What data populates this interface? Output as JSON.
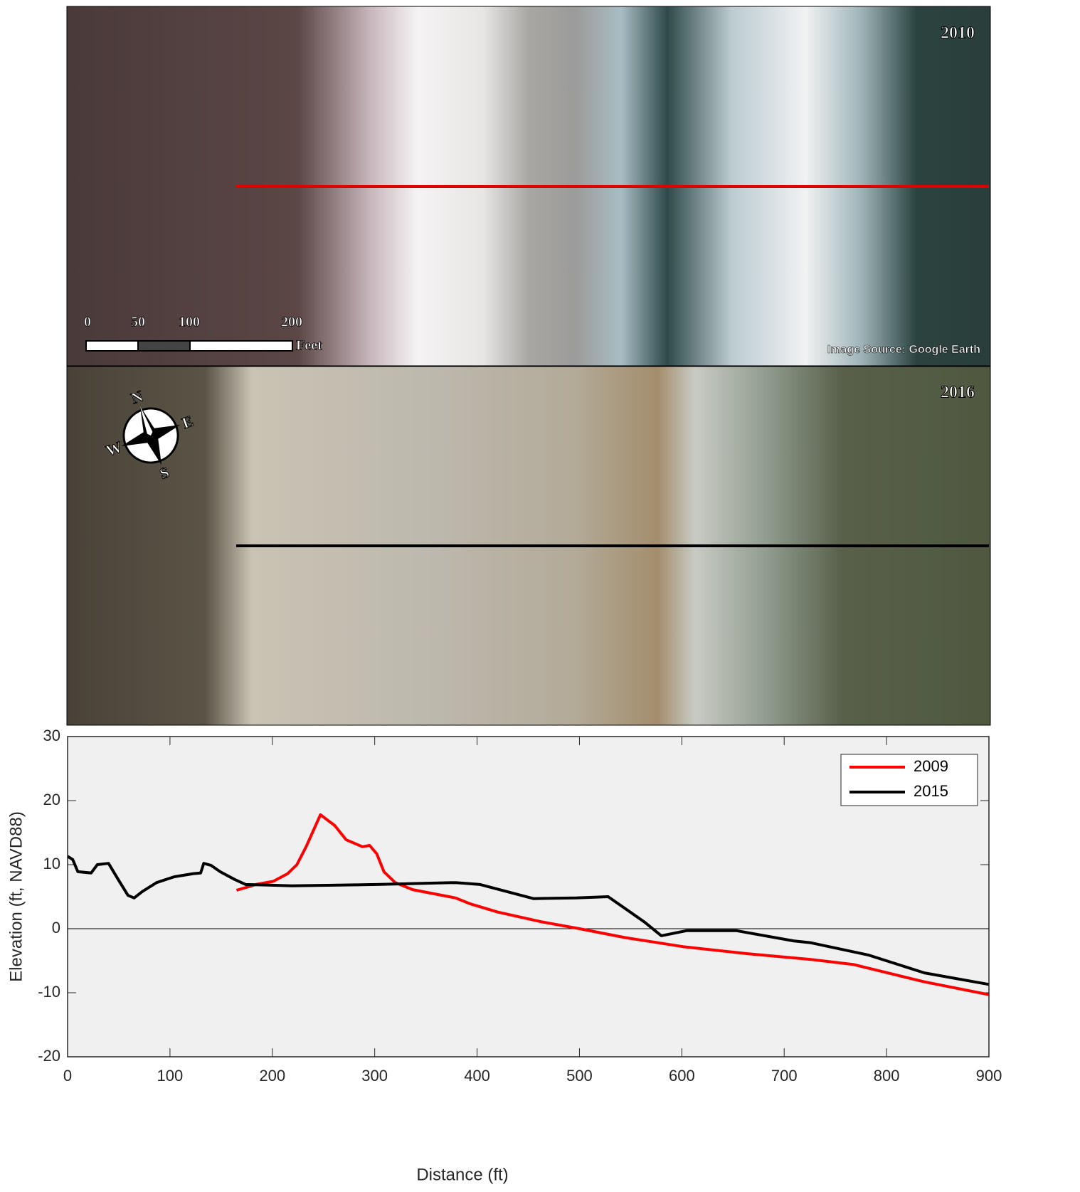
{
  "panels": {
    "top": {
      "year": "2010",
      "scale_labels": [
        "0",
        "50",
        "100",
        "200"
      ],
      "scale_unit": "Feet",
      "source": "Image Source: Google Earth"
    },
    "bottom": {
      "year": "2016",
      "compass": [
        "N",
        "E",
        "S",
        "W"
      ]
    }
  },
  "chart_data": {
    "type": "line",
    "x_label": "Distance (ft)",
    "y_label": "Elevation (ft, NAVD88)",
    "xlim": [
      0,
      900
    ],
    "ylim": [
      -20,
      30
    ],
    "xticks": [
      0,
      100,
      200,
      300,
      400,
      500,
      600,
      700,
      800,
      900
    ],
    "yticks": [
      -20,
      -10,
      0,
      10,
      20,
      30
    ],
    "grid": false,
    "legend": "northeast",
    "series": [
      {
        "name": "2009",
        "color": "#ff0000",
        "x": [
          165,
          184,
          201,
          215,
          224,
          233,
          247,
          261,
          272,
          288,
          295,
          302,
          309,
          320,
          337,
          379,
          393,
          420,
          462,
          500,
          545,
          601,
          664,
          726,
          768,
          837,
          900
        ],
        "values": [
          6.0,
          6.9,
          7.4,
          8.6,
          10,
          12.8,
          17.8,
          16.1,
          13.9,
          12.8,
          13,
          11.7,
          8.9,
          7.2,
          6.1,
          4.8,
          3.9,
          2.6,
          1.1,
          0,
          -1.4,
          -2.8,
          -3.9,
          -4.8,
          -5.6,
          -8.3,
          -10.3
        ]
      },
      {
        "name": "2015",
        "color": "#000000",
        "x": [
          0,
          5,
          10,
          23,
          29,
          40,
          49,
          59,
          65,
          73,
          87,
          104,
          123,
          130,
          133,
          140,
          149,
          163,
          174,
          219,
          302,
          379,
          403,
          455,
          497,
          528,
          563,
          580,
          605,
          653,
          709,
          726,
          782,
          837,
          900
        ],
        "values": [
          11.3,
          10.8,
          8.9,
          8.7,
          10,
          10.2,
          7.8,
          5.2,
          4.8,
          5.8,
          7.2,
          8.1,
          8.6,
          8.7,
          10.2,
          9.9,
          8.9,
          7.7,
          6.9,
          6.7,
          6.9,
          7.2,
          6.9,
          4.7,
          4.8,
          5,
          1.1,
          -1.1,
          -0.3,
          -0.3,
          -1.9,
          -2.2,
          -4.1,
          -6.9,
          -8.7
        ]
      }
    ]
  }
}
